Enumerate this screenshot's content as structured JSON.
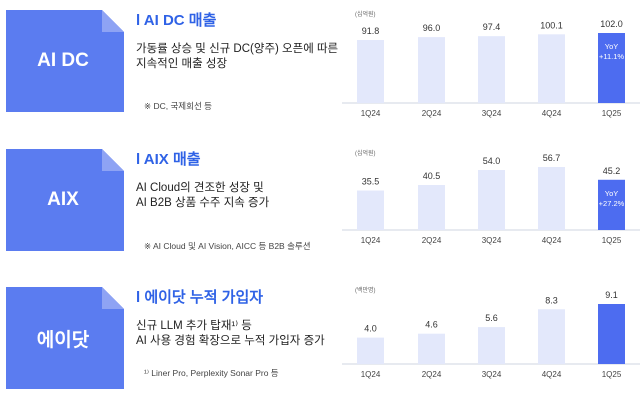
{
  "colors": {
    "accent": "#5b7cf0",
    "bar_light": "#e3e8fb",
    "bar_dark": "#4d6cf0",
    "title_blue": "#2f62e6"
  },
  "panels": [
    {
      "tab_label": "AI DC",
      "title": "l AI DC 매출",
      "desc": [
        "가동률 상승 및 신규 DC(양주) 오픈에 따른",
        "지속적인 매출 성장"
      ],
      "note": "※ DC, 국제회선 등",
      "unit": "(십억원)",
      "yoy": [
        "YoY",
        "+11.1%"
      ],
      "chart_data": {
        "type": "bar",
        "categories": [
          "1Q24",
          "2Q24",
          "3Q24",
          "4Q24",
          "1Q25"
        ],
        "values": [
          91.8,
          96.0,
          97.4,
          100.1,
          102.0
        ],
        "highlight_index": 4
      }
    },
    {
      "tab_label": "AIX",
      "title": "l AIX 매출",
      "desc": [
        "AI Cloud의 견조한 성장 및",
        "AI B2B 상품 수주 지속 증가"
      ],
      "note": "※ AI Cloud 및 AI Vision, AICC 등 B2B 솔루션",
      "unit": "(십억원)",
      "yoy": [
        "YoY",
        "+27.2%"
      ],
      "chart_data": {
        "type": "bar",
        "categories": [
          "1Q24",
          "2Q24",
          "3Q24",
          "4Q24",
          "1Q25"
        ],
        "values": [
          35.5,
          40.5,
          54.0,
          56.7,
          45.2
        ],
        "highlight_index": 4
      }
    },
    {
      "tab_label": "에이닷",
      "title": "l 에이닷 누적 가입자",
      "desc": [
        "신규 LLM 추가 탑재¹⁾ 등",
        "AI 사용 경험 확장으로 누적 가입자 증가"
      ],
      "note": "¹⁾ Liner Pro, Perplexity Sonar Pro 등",
      "unit": "(백만명)",
      "yoy": null,
      "chart_data": {
        "type": "bar",
        "categories": [
          "1Q24",
          "2Q24",
          "3Q24",
          "4Q24",
          "1Q25"
        ],
        "values": [
          4.0,
          4.6,
          5.6,
          8.3,
          9.1
        ],
        "highlight_index": 4
      }
    }
  ]
}
